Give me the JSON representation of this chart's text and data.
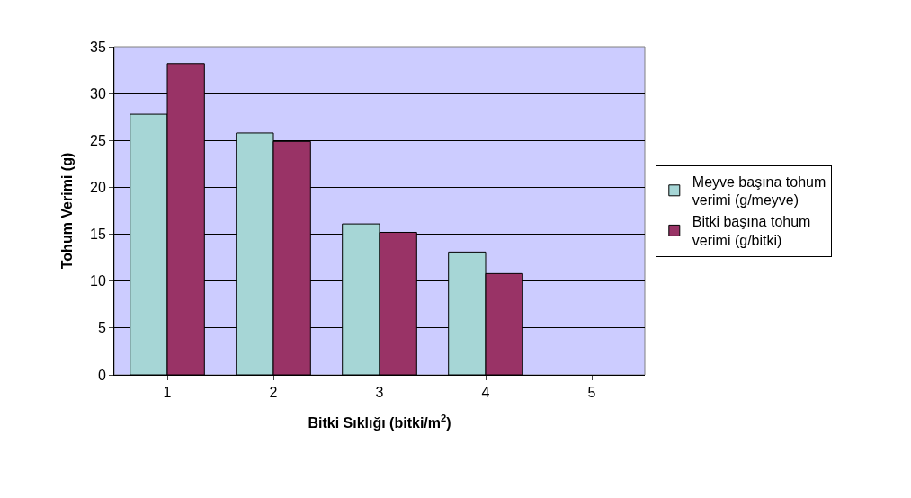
{
  "chart_data": {
    "type": "bar",
    "xlabel": "Bitki Sıklığı (bitki/m$^{2}$)",
    "ylabel": "Tohum Verimi (g)",
    "categories": [
      "1",
      "2",
      "3",
      "4",
      "5"
    ],
    "series": [
      {
        "name": "Meyve başına tohum verimi (g/meyve)",
        "color": "#a6d6d6",
        "values": [
          27.8,
          25.8,
          16.1,
          13.1,
          null
        ]
      },
      {
        "name": "Bitki başına tohum verimi (g/bitki)",
        "color": "#993366",
        "values": [
          33.2,
          24.9,
          15.2,
          10.8,
          null
        ]
      }
    ],
    "ylim": [
      0,
      35
    ],
    "yticks": [
      0,
      5,
      10,
      15,
      20,
      25,
      30,
      35
    ],
    "grid": "y",
    "legend": "right"
  }
}
